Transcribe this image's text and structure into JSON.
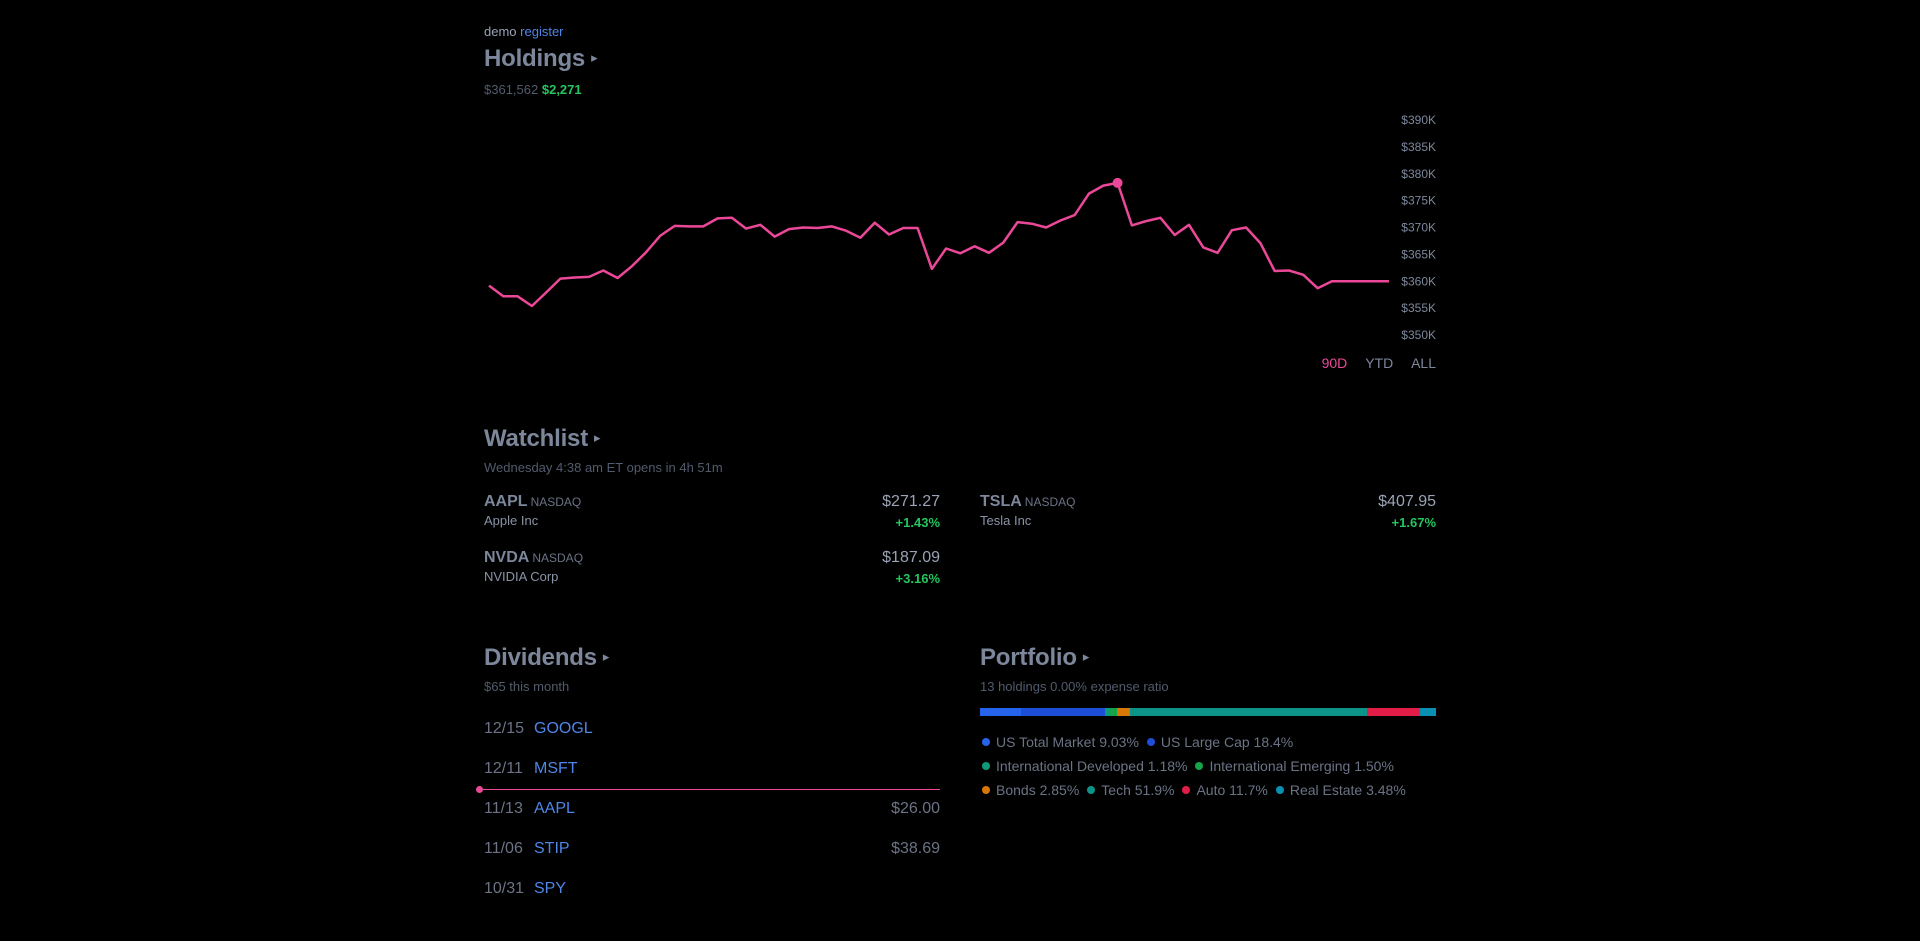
{
  "header": {
    "user": "demo",
    "register_link": "register"
  },
  "holdings": {
    "title": "Holdings",
    "caret": "▸",
    "total_value": "$361,562",
    "change": "$2,271"
  },
  "chart_data": {
    "type": "line",
    "series": [
      {
        "values": [
          359.2,
          357.2,
          357.2,
          355.4,
          357.9,
          360.5,
          360.7,
          360.8,
          362.0,
          360.6,
          362.8,
          365.4,
          368.5,
          370.3,
          370.2,
          370.2,
          371.7,
          371.8,
          369.8,
          370.5,
          368.3,
          369.7,
          370.0,
          369.9,
          370.2,
          369.4,
          368.1,
          370.9,
          368.7,
          369.9,
          369.9,
          362.3,
          366.1,
          365.2,
          366.5,
          365.3,
          367.2,
          371.0,
          370.7,
          370.0,
          371.3,
          372.3,
          376.3,
          377.8,
          378.3,
          370.4,
          371.2,
          371.8,
          368.6,
          370.5,
          366.3,
          365.3,
          369.5,
          370.0,
          367.1,
          361.9,
          362.0,
          361.2,
          358.7,
          360.0,
          360.0,
          360.0,
          360.0,
          360.0
        ]
      }
    ],
    "yticks": [
      "$390K",
      "$385K",
      "$380K",
      "$375K",
      "$370K",
      "$365K",
      "$360K",
      "$355K",
      "$350K"
    ],
    "ylim": [
      350,
      390
    ],
    "highlight_index": 44
  },
  "range_buttons": [
    "90D",
    "YTD",
    "ALL"
  ],
  "watchlist": {
    "title": "Watchlist",
    "caret": "▸",
    "status": "Wednesday 4:38 am ET opens in 4h 51m",
    "items": [
      {
        "symbol": "AAPL",
        "exchange": "NASDAQ",
        "name": "Apple Inc",
        "price": "$271.27",
        "change": "+1.43%"
      },
      {
        "symbol": "TSLA",
        "exchange": "NASDAQ",
        "name": "Tesla Inc",
        "price": "$407.95",
        "change": "+1.67%"
      },
      {
        "symbol": "NVDA",
        "exchange": "NASDAQ",
        "name": "NVIDIA Corp",
        "price": "$187.09",
        "change": "+3.16%"
      }
    ]
  },
  "dividends": {
    "title": "Dividends",
    "caret": "▸",
    "summary": "$65 this month",
    "rows": [
      {
        "date": "12/15",
        "symbol": "GOOGL",
        "amount": ""
      },
      {
        "date": "12/11",
        "symbol": "MSFT",
        "amount": ""
      },
      {
        "date": "11/13",
        "symbol": "AAPL",
        "amount": "$26.00"
      },
      {
        "date": "11/06",
        "symbol": "STIP",
        "amount": "$38.69"
      },
      {
        "date": "10/31",
        "symbol": "SPY",
        "amount": ""
      }
    ]
  },
  "portfolio": {
    "title": "Portfolio",
    "caret": "▸",
    "summary": "13 holdings 0.00% expense ratio",
    "allocation": [
      {
        "label": "US Total Market 9.03%",
        "percent": 9.03,
        "color": "#2563eb"
      },
      {
        "label": "US Large Cap 18.4%",
        "percent": 18.4,
        "color": "#1d4ed8"
      },
      {
        "label": "International Developed 1.18%",
        "percent": 1.18,
        "color": "#0f9a7c"
      },
      {
        "label": "International Emerging 1.50%",
        "percent": 1.5,
        "color": "#16a34a"
      },
      {
        "label": "Bonds 2.85%",
        "percent": 2.85,
        "color": "#d97706"
      },
      {
        "label": "Tech 51.9%",
        "percent": 51.9,
        "color": "#0d9488"
      },
      {
        "label": "Auto 11.7%",
        "percent": 11.7,
        "color": "#e11d48"
      },
      {
        "label": "Real Estate 3.48%",
        "percent": 3.48,
        "color": "#0891b2"
      }
    ]
  }
}
